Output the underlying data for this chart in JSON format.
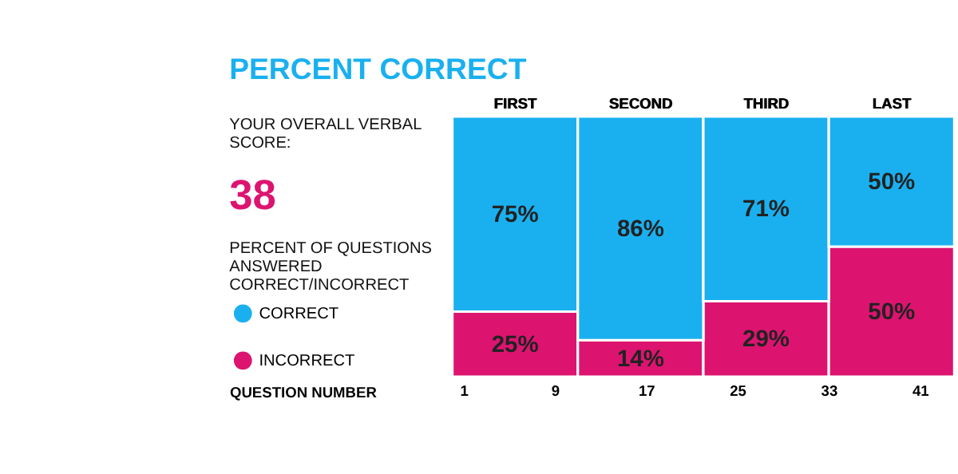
{
  "chart_data": {
    "type": "bar",
    "stacked": true,
    "title": "PERCENT CORRECT",
    "categories": [
      "FIRST",
      "SECOND",
      "THIRD",
      "LAST"
    ],
    "series": [
      {
        "name": "INCORRECT",
        "color": "#dc1470",
        "values": [
          25,
          14,
          29,
          50
        ],
        "value_labels": [
          "25%",
          "14%",
          "29%",
          "50%"
        ]
      },
      {
        "name": "CORRECT",
        "color": "#1ab0f0",
        "values": [
          75,
          86,
          71,
          50
        ],
        "value_labels": [
          "75%",
          "86%",
          "71%",
          "50%"
        ]
      }
    ],
    "ylim": [
      0,
      100
    ],
    "x2label": "QUESTION NUMBER",
    "x2lim": [
      0,
      44
    ],
    "x2ticks": [
      1,
      9,
      17,
      25,
      33,
      41
    ],
    "tick_labels": "x",
    "legend": "left",
    "annotations": [
      "YOUR OVERALL VERBAL SCORE:",
      "38",
      "PERCENT OF QUESTIONS ANSWERED CORRECT/INCORRECT"
    ]
  }
}
